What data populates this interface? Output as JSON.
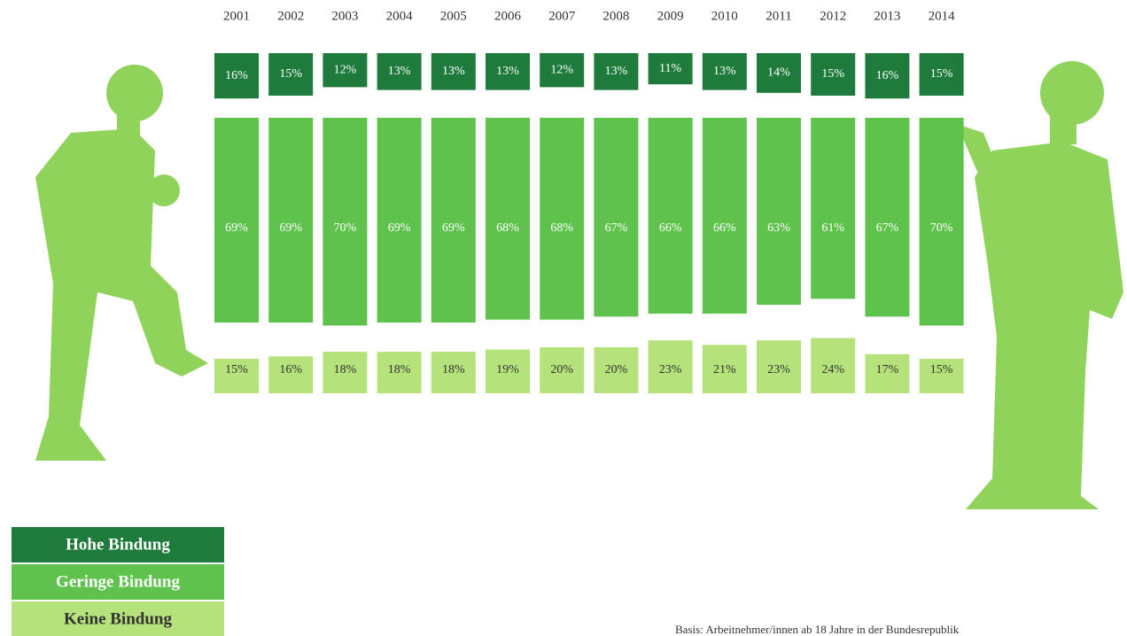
{
  "chart_data": {
    "type": "bar",
    "categories": [
      "2001",
      "2002",
      "2003",
      "2004",
      "2005",
      "2006",
      "2007",
      "2008",
      "2009",
      "2010",
      "2011",
      "2012",
      "2013",
      "2014"
    ],
    "series": [
      {
        "name": "Hohe Bindung",
        "color": "#1e7b3b",
        "values": [
          16,
          15,
          12,
          13,
          13,
          13,
          12,
          13,
          11,
          13,
          14,
          15,
          16,
          15
        ],
        "value_labels": [
          "16%",
          "15%",
          "12%",
          "13%",
          "13%",
          "13%",
          "12%",
          "13%",
          "11%",
          "13%",
          "14%",
          "15%",
          "16%",
          "15%"
        ]
      },
      {
        "name": "Geringe Bindung",
        "color": "#5ec24c",
        "values": [
          69,
          69,
          70,
          69,
          69,
          68,
          68,
          67,
          66,
          66,
          63,
          61,
          67,
          70
        ],
        "value_labels": [
          "69%",
          "69%",
          "70%",
          "69%",
          "69%",
          "68%",
          "68%",
          "67%",
          "66%",
          "66%",
          "63%",
          "61%",
          "67%",
          "70%"
        ]
      },
      {
        "name": "Keine Bindung",
        "color": "#b5e27a",
        "values": [
          15,
          16,
          18,
          18,
          18,
          19,
          20,
          20,
          23,
          21,
          23,
          24,
          17,
          15
        ],
        "value_labels": [
          "15%",
          "16%",
          "18%",
          "18%",
          "18%",
          "19%",
          "20%",
          "20%",
          "23%",
          "21%",
          "23%",
          "24%",
          "17%",
          "15%"
        ]
      }
    ],
    "footnote": "Basis: Arbeitnehmer/innen ab 18 Jahre in der Bundesrepublik"
  }
}
